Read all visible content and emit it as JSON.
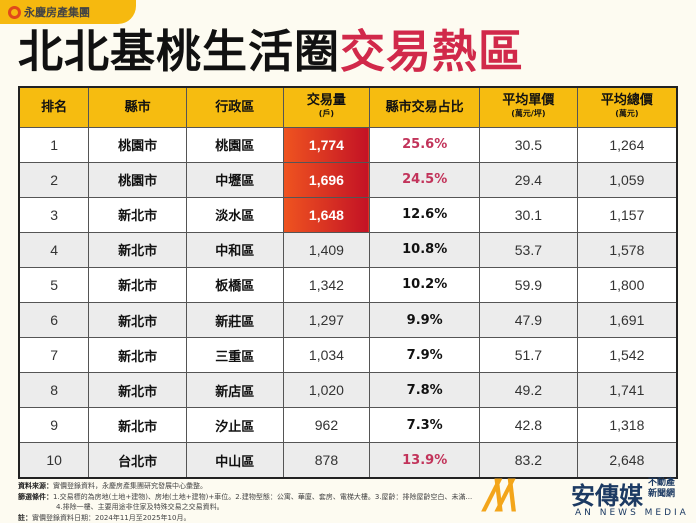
{
  "brand_badge": "永慶房產集團",
  "title": {
    "black": "北北基桃生活圈",
    "red": "交易熱區"
  },
  "table": {
    "headers": [
      {
        "main": "排名",
        "sub": ""
      },
      {
        "main": "縣市",
        "sub": ""
      },
      {
        "main": "行政區",
        "sub": ""
      },
      {
        "main": "交易量",
        "sub": "(戶)"
      },
      {
        "main": "縣市交易占比",
        "sub": ""
      },
      {
        "main": "平均單價",
        "sub": "(萬元/坪)"
      },
      {
        "main": "平均總價",
        "sub": "(萬元)"
      }
    ],
    "rows": [
      {
        "rank": "1",
        "city": "桃園市",
        "district": "桃園區",
        "volume": "1,774",
        "share": "25.6%",
        "unit_price": "30.5",
        "total_price": "1,264",
        "heat": true,
        "share_red": true
      },
      {
        "rank": "2",
        "city": "桃園市",
        "district": "中壢區",
        "volume": "1,696",
        "share": "24.5%",
        "unit_price": "29.4",
        "total_price": "1,059",
        "heat": true,
        "share_red": true
      },
      {
        "rank": "3",
        "city": "新北市",
        "district": "淡水區",
        "volume": "1,648",
        "share": "12.6%",
        "unit_price": "30.1",
        "total_price": "1,157",
        "heat": true,
        "share_red": false
      },
      {
        "rank": "4",
        "city": "新北市",
        "district": "中和區",
        "volume": "1,409",
        "share": "10.8%",
        "unit_price": "53.7",
        "total_price": "1,578",
        "heat": false,
        "share_red": false
      },
      {
        "rank": "5",
        "city": "新北市",
        "district": "板橋區",
        "volume": "1,342",
        "share": "10.2%",
        "unit_price": "59.9",
        "total_price": "1,800",
        "heat": false,
        "share_red": false
      },
      {
        "rank": "6",
        "city": "新北市",
        "district": "新莊區",
        "volume": "1,297",
        "share": "9.9%",
        "unit_price": "47.9",
        "total_price": "1,691",
        "heat": false,
        "share_red": false
      },
      {
        "rank": "7",
        "city": "新北市",
        "district": "三重區",
        "volume": "1,034",
        "share": "7.9%",
        "unit_price": "51.7",
        "total_price": "1,542",
        "heat": false,
        "share_red": false
      },
      {
        "rank": "8",
        "city": "新北市",
        "district": "新店區",
        "volume": "1,020",
        "share": "7.8%",
        "unit_price": "49.2",
        "total_price": "1,741",
        "heat": false,
        "share_red": false
      },
      {
        "rank": "9",
        "city": "新北市",
        "district": "汐止區",
        "volume": "962",
        "share": "7.3%",
        "unit_price": "42.8",
        "total_price": "1,318",
        "heat": false,
        "share_red": false
      },
      {
        "rank": "10",
        "city": "台北市",
        "district": "中山區",
        "volume": "878",
        "share": "13.9%",
        "unit_price": "83.2",
        "total_price": "2,648",
        "heat": false,
        "share_red": true
      }
    ]
  },
  "notes": {
    "source_label": "資料來源：",
    "source": "實價登錄資料，永慶房產集團研究發展中心彙整。",
    "filter_label": "篩選條件：",
    "filter_1": "1.交易標的為房地(土地+建物)、房地(土地+建物)+車位。2.建物型態：公寓、華廈、套房、電梯大樓。3.屋齡：排除屋齡空白、未滿...",
    "filter_2": "4.排除一樓、主要用途非住家及特殊交易之交易資料。",
    "note_label": "註：",
    "note": "實價登錄資料日期：2024年11月至2025年10月。"
  },
  "media": {
    "name": "安傳媒",
    "sub1": "不動產",
    "sub2": "新聞網",
    "en": "AN NEWS MEDIA"
  },
  "colors": {
    "header": "#f6bc10",
    "title_red": "#d1294a",
    "share_red": "#c2335a",
    "heat_start": "#ef5420",
    "heat_end": "#c31225"
  }
}
